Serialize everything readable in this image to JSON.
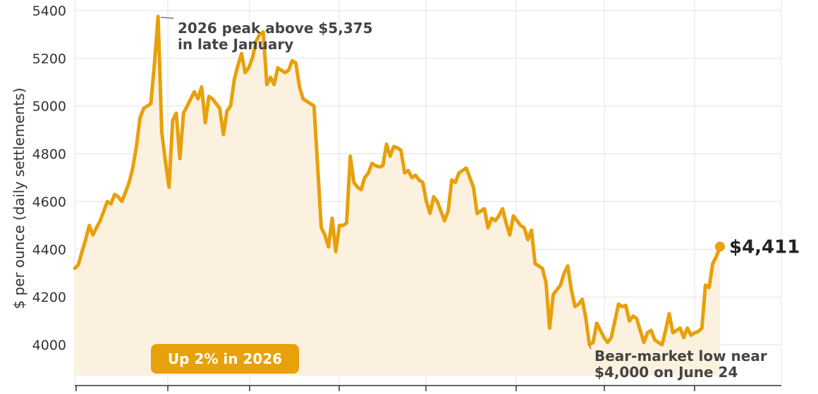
{
  "chart_data": {
    "type": "area",
    "title": "",
    "xlabel": "",
    "ylabel": "$ per ounce (daily settlements)",
    "ylim": [
      3870,
      5420
    ],
    "yticks": [
      4000,
      4200,
      4400,
      4600,
      4800,
      5000,
      5200,
      5400
    ],
    "grid": true,
    "colors": {
      "line": "#E8A00B",
      "fill": "#FCF1DE",
      "badge": "#E8A00B",
      "grid": "#E3E3E3"
    },
    "series": [
      {
        "values": [
          4320,
          4335,
          4390,
          4440,
          4500,
          4460,
          4490,
          4520,
          4560,
          4600,
          4590,
          4630,
          4620,
          4600,
          4640,
          4680,
          4740,
          4830,
          4950,
          4990,
          5000,
          5010,
          5180,
          5375,
          4890,
          4770,
          4660,
          4940,
          4970,
          4780,
          4970,
          5000,
          5030,
          5060,
          5030,
          5080,
          4930,
          5040,
          5030,
          5010,
          4990,
          4880,
          4980,
          5000,
          5110,
          5170,
          5220,
          5140,
          5160,
          5200,
          5270,
          5300,
          5310,
          5090,
          5120,
          5090,
          5160,
          5150,
          5140,
          5150,
          5190,
          5180,
          5080,
          5030,
          5020,
          5010,
          5000,
          4750,
          4490,
          4460,
          4410,
          4530,
          4390,
          4500,
          4500,
          4510,
          4790,
          4680,
          4660,
          4650,
          4700,
          4720,
          4760,
          4750,
          4745,
          4750,
          4840,
          4790,
          4830,
          4825,
          4815,
          4720,
          4730,
          4700,
          4710,
          4690,
          4680,
          4600,
          4550,
          4620,
          4600,
          4560,
          4520,
          4560,
          4690,
          4680,
          4720,
          4730,
          4740,
          4700,
          4660,
          4550,
          4560,
          4570,
          4490,
          4530,
          4520,
          4540,
          4570,
          4510,
          4460,
          4540,
          4520,
          4500,
          4490,
          4440,
          4480,
          4340,
          4330,
          4320,
          4260,
          4070,
          4210,
          4230,
          4250,
          4300,
          4330,
          4230,
          4160,
          4170,
          4190,
          4110,
          4000,
          4010,
          4090,
          4060,
          4030,
          4010,
          4030,
          4100,
          4170,
          4160,
          4165,
          4100,
          4120,
          4110,
          4060,
          4010,
          4050,
          4060,
          4020,
          4010,
          4000,
          4060,
          4130,
          4050,
          4060,
          4070,
          4030,
          4070,
          4040,
          4050,
          4055,
          4070,
          4250,
          4240,
          4340,
          4370,
          4411
        ]
      }
    ],
    "annotations": {
      "peak": {
        "line1": "2026 peak above $5,375",
        "line2": "in late January"
      },
      "low": {
        "line1": "Bear-market low near",
        "line2": "$4,000 on June 24"
      },
      "last_value": "$4,411",
      "badge": "Up 2% in 2026"
    }
  }
}
